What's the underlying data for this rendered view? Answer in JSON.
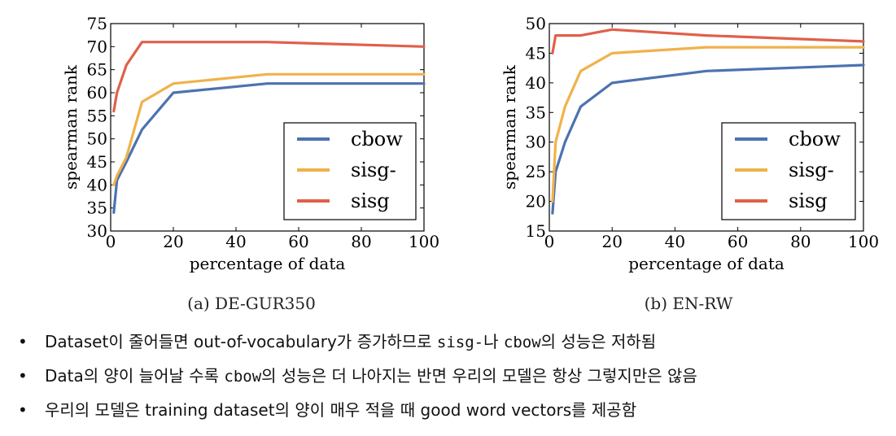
{
  "chart_data": [
    {
      "type": "line",
      "caption": "(a) DE-GUR350",
      "xlabel": "percentage of data",
      "ylabel": "spearman rank",
      "xlim": [
        0,
        100
      ],
      "ylim": [
        30,
        75
      ],
      "xticks": [
        0,
        20,
        40,
        60,
        80,
        100
      ],
      "yticks": [
        30,
        35,
        40,
        45,
        50,
        55,
        60,
        65,
        70,
        75
      ],
      "legend_position": "lower-right",
      "series": [
        {
          "name": "cbow",
          "color": "#4c72b0",
          "x": [
            1,
            2,
            5,
            10,
            20,
            50,
            100
          ],
          "y": [
            34,
            41,
            45,
            52,
            60,
            62,
            62
          ]
        },
        {
          "name": "sisg-",
          "color": "#f0b24a",
          "x": [
            1,
            2,
            5,
            10,
            20,
            50,
            100
          ],
          "y": [
            40,
            42,
            46,
            58,
            62,
            64,
            64
          ]
        },
        {
          "name": "sisg",
          "color": "#e0604a",
          "x": [
            1,
            2,
            5,
            10,
            20,
            50,
            100
          ],
          "y": [
            56,
            60,
            66,
            71,
            71,
            71,
            70
          ]
        }
      ]
    },
    {
      "type": "line",
      "caption": "(b) EN-RW",
      "xlabel": "percentage of data",
      "ylabel": "spearman rank",
      "xlim": [
        0,
        100
      ],
      "ylim": [
        15,
        50
      ],
      "xticks": [
        0,
        20,
        40,
        60,
        80,
        100
      ],
      "yticks": [
        15,
        20,
        25,
        30,
        35,
        40,
        45,
        50
      ],
      "legend_position": "lower-right",
      "series": [
        {
          "name": "cbow",
          "color": "#4c72b0",
          "x": [
            1,
            2,
            5,
            10,
            20,
            50,
            100
          ],
          "y": [
            18,
            25,
            30,
            36,
            40,
            42,
            43
          ]
        },
        {
          "name": "sisg-",
          "color": "#f0b24a",
          "x": [
            1,
            2,
            5,
            10,
            20,
            50,
            100
          ],
          "y": [
            20,
            30,
            36,
            42,
            45,
            46,
            46
          ]
        },
        {
          "name": "sisg",
          "color": "#e0604a",
          "x": [
            1,
            2,
            5,
            10,
            20,
            50,
            100
          ],
          "y": [
            45,
            48,
            48,
            48,
            49,
            48,
            47
          ]
        }
      ]
    }
  ],
  "bullets": [
    {
      "parts": [
        {
          "text": "Dataset이 줄어들면 out-of-vocabulary가 증가하므로 ",
          "mono": false
        },
        {
          "text": "sisg-",
          "mono": true
        },
        {
          "text": "나 ",
          "mono": false
        },
        {
          "text": "cbow",
          "mono": true
        },
        {
          "text": "의 성능은 저하됨",
          "mono": false
        }
      ]
    },
    {
      "parts": [
        {
          "text": "Data의 양이 늘어날 수록 ",
          "mono": false
        },
        {
          "text": "cbow",
          "mono": true
        },
        {
          "text": "의 성능은 더 나아지는 반면 우리의 모델은 항상 그렇지만은 않음",
          "mono": false
        }
      ]
    },
    {
      "parts": [
        {
          "text": "우리의 모델은 training dataset의 양이 매우 적을 때 good word vectors를 제공함",
          "mono": false
        }
      ]
    }
  ],
  "bullet_symbol": "•"
}
